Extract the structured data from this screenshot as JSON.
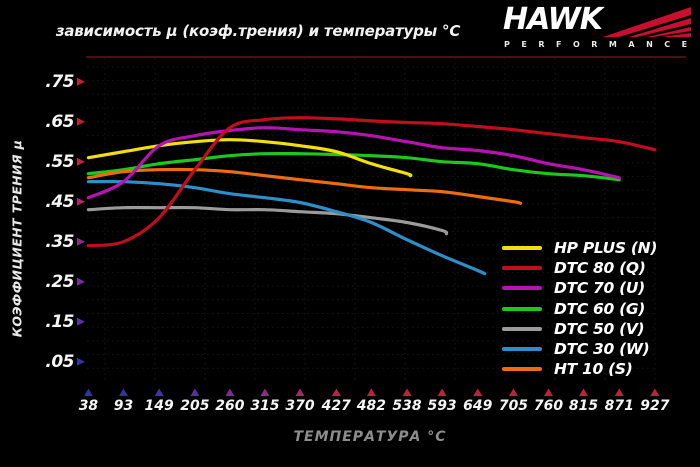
{
  "header": {
    "title": "зависимость μ (коэф.трения) и температуры °C",
    "logo_text": "HAWK",
    "logo_subtext": "PERFORMANCE",
    "logo_accent_color": "#c8102e"
  },
  "chart_data": {
    "type": "line",
    "title": "зависимость μ (коэф.трения) и температуры °C",
    "xlabel": "ТЕМПЕРАТУРА °C",
    "ylabel": "КОЭФФИЦИЕНТ ТРЕНИЯ μ",
    "categories": [
      38,
      93,
      149,
      205,
      260,
      315,
      370,
      427,
      482,
      538,
      593,
      649,
      705,
      760,
      815,
      871,
      927
    ],
    "y_tick_labels": [
      ".75",
      ".65",
      ".55",
      ".45",
      ".35",
      ".25",
      ".15",
      ".05"
    ],
    "y_tick_values": [
      0.75,
      0.65,
      0.55,
      0.45,
      0.35,
      0.25,
      0.15,
      0.05
    ],
    "ylim": [
      0,
      0.8
    ],
    "xlim_c": [
      38,
      927
    ],
    "grid": true,
    "legend_position": "bottom-right",
    "series": [
      {
        "name": "HP PLUS (N)",
        "color": "#f2df0d",
        "points": [
          [
            38,
            0.56
          ],
          [
            93,
            0.575
          ],
          [
            149,
            0.59
          ],
          [
            205,
            0.6
          ],
          [
            260,
            0.605
          ],
          [
            315,
            0.6
          ],
          [
            370,
            0.59
          ],
          [
            427,
            0.575
          ],
          [
            482,
            0.545
          ],
          [
            538,
            0.52
          ],
          [
            543,
            0.515
          ]
        ]
      },
      {
        "name": "DTC 80 (Q)",
        "color": "#c00e1e",
        "points": [
          [
            38,
            0.34
          ],
          [
            93,
            0.35
          ],
          [
            149,
            0.41
          ],
          [
            205,
            0.53
          ],
          [
            260,
            0.635
          ],
          [
            315,
            0.655
          ],
          [
            370,
            0.66
          ],
          [
            427,
            0.657
          ],
          [
            482,
            0.652
          ],
          [
            538,
            0.648
          ],
          [
            593,
            0.645
          ],
          [
            649,
            0.638
          ],
          [
            705,
            0.63
          ],
          [
            760,
            0.62
          ],
          [
            815,
            0.61
          ],
          [
            871,
            0.6
          ],
          [
            927,
            0.58
          ]
        ]
      },
      {
        "name": "DTC 70 (U)",
        "color": "#b812b2",
        "points": [
          [
            38,
            0.46
          ],
          [
            93,
            0.5
          ],
          [
            149,
            0.59
          ],
          [
            205,
            0.615
          ],
          [
            260,
            0.628
          ],
          [
            315,
            0.635
          ],
          [
            370,
            0.63
          ],
          [
            427,
            0.625
          ],
          [
            482,
            0.615
          ],
          [
            538,
            0.6
          ],
          [
            593,
            0.585
          ],
          [
            649,
            0.578
          ],
          [
            705,
            0.565
          ],
          [
            760,
            0.545
          ],
          [
            815,
            0.53
          ],
          [
            871,
            0.51
          ]
        ]
      },
      {
        "name": "DTC 60 (G)",
        "color": "#1dc81d",
        "points": [
          [
            38,
            0.52
          ],
          [
            93,
            0.53
          ],
          [
            149,
            0.545
          ],
          [
            205,
            0.555
          ],
          [
            260,
            0.565
          ],
          [
            315,
            0.57
          ],
          [
            370,
            0.57
          ],
          [
            427,
            0.568
          ],
          [
            482,
            0.565
          ],
          [
            538,
            0.56
          ],
          [
            593,
            0.55
          ],
          [
            649,
            0.545
          ],
          [
            705,
            0.53
          ],
          [
            760,
            0.52
          ],
          [
            815,
            0.515
          ],
          [
            871,
            0.505
          ]
        ]
      },
      {
        "name": "DTC 50 (V)",
        "color": "#9b9b9b",
        "points": [
          [
            38,
            0.43
          ],
          [
            93,
            0.435
          ],
          [
            149,
            0.435
          ],
          [
            205,
            0.435
          ],
          [
            260,
            0.43
          ],
          [
            315,
            0.43
          ],
          [
            370,
            0.425
          ],
          [
            427,
            0.42
          ],
          [
            482,
            0.41
          ],
          [
            538,
            0.398
          ],
          [
            593,
            0.378
          ],
          [
            600,
            0.37
          ]
        ]
      },
      {
        "name": "DTC 30 (W)",
        "color": "#2e8ec8",
        "points": [
          [
            38,
            0.5
          ],
          [
            93,
            0.5
          ],
          [
            149,
            0.495
          ],
          [
            205,
            0.485
          ],
          [
            260,
            0.47
          ],
          [
            315,
            0.46
          ],
          [
            370,
            0.448
          ],
          [
            427,
            0.425
          ],
          [
            482,
            0.398
          ],
          [
            538,
            0.355
          ],
          [
            593,
            0.315
          ],
          [
            649,
            0.278
          ],
          [
            660,
            0.27
          ]
        ]
      },
      {
        "name": "HT 10 (S)",
        "color": "#ef6c0e",
        "points": [
          [
            38,
            0.51
          ],
          [
            93,
            0.525
          ],
          [
            149,
            0.53
          ],
          [
            205,
            0.53
          ],
          [
            260,
            0.525
          ],
          [
            315,
            0.515
          ],
          [
            370,
            0.505
          ],
          [
            427,
            0.495
          ],
          [
            482,
            0.485
          ],
          [
            538,
            0.48
          ],
          [
            593,
            0.475
          ],
          [
            649,
            0.463
          ],
          [
            705,
            0.45
          ],
          [
            716,
            0.446
          ]
        ]
      }
    ],
    "axis_colors": {
      "y_top": "#c41e3a",
      "y_bottom": "#2a2aa0",
      "x_left": "#2a2aa0",
      "x_right": "#c41e3a",
      "top_border": "#4a0e14"
    },
    "y_arrow_colors": [
      "#c0203c",
      "#c0203c",
      "#be2148",
      "#b42567",
      "#93288b",
      "#7a2ba0",
      "#5732a8",
      "#34349e"
    ],
    "x_arrow_colors": [
      "#32329e",
      "#34329e",
      "#3e35a2",
      "#5531a5",
      "#7c2c98",
      "#932a80",
      "#a82862",
      "#b82448",
      "#c2203c",
      "#c2203c",
      "#c2203c",
      "#c2203c",
      "#c2203c",
      "#c2203c",
      "#c2203c",
      "#c2203c",
      "#c2203c"
    ]
  }
}
